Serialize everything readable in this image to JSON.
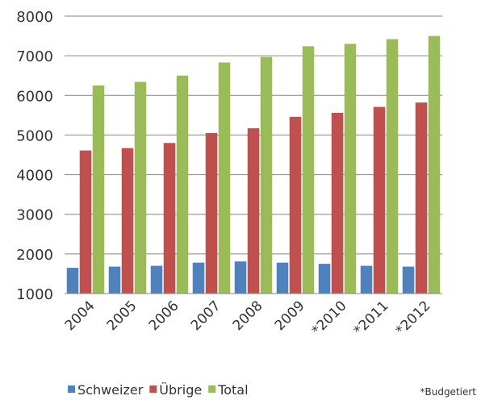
{
  "chart_data": {
    "type": "bar",
    "categories": [
      "2004",
      "2005",
      "2006",
      "2007",
      "2008",
      "2009",
      "*2010",
      "*2011",
      "*2012"
    ],
    "series": [
      {
        "name": "Schweizer",
        "color": "#4f81bd",
        "values": [
          1650,
          1680,
          1700,
          1780,
          1810,
          1780,
          1750,
          1700,
          1680
        ]
      },
      {
        "name": "Übrige",
        "color": "#c0504d",
        "values": [
          4610,
          4670,
          4800,
          5050,
          5170,
          5460,
          5560,
          5710,
          5820
        ]
      },
      {
        "name": "Total",
        "color": "#9bbb59",
        "values": [
          6250,
          6340,
          6500,
          6830,
          6970,
          7240,
          7300,
          7420,
          7500
        ]
      }
    ],
    "yticks": [
      1000,
      2000,
      3000,
      4000,
      5000,
      6000,
      7000,
      8000
    ],
    "ylim": [
      1000,
      8000
    ],
    "grid": true,
    "legend": "bottom",
    "footnote": "*Budgetiert"
  }
}
